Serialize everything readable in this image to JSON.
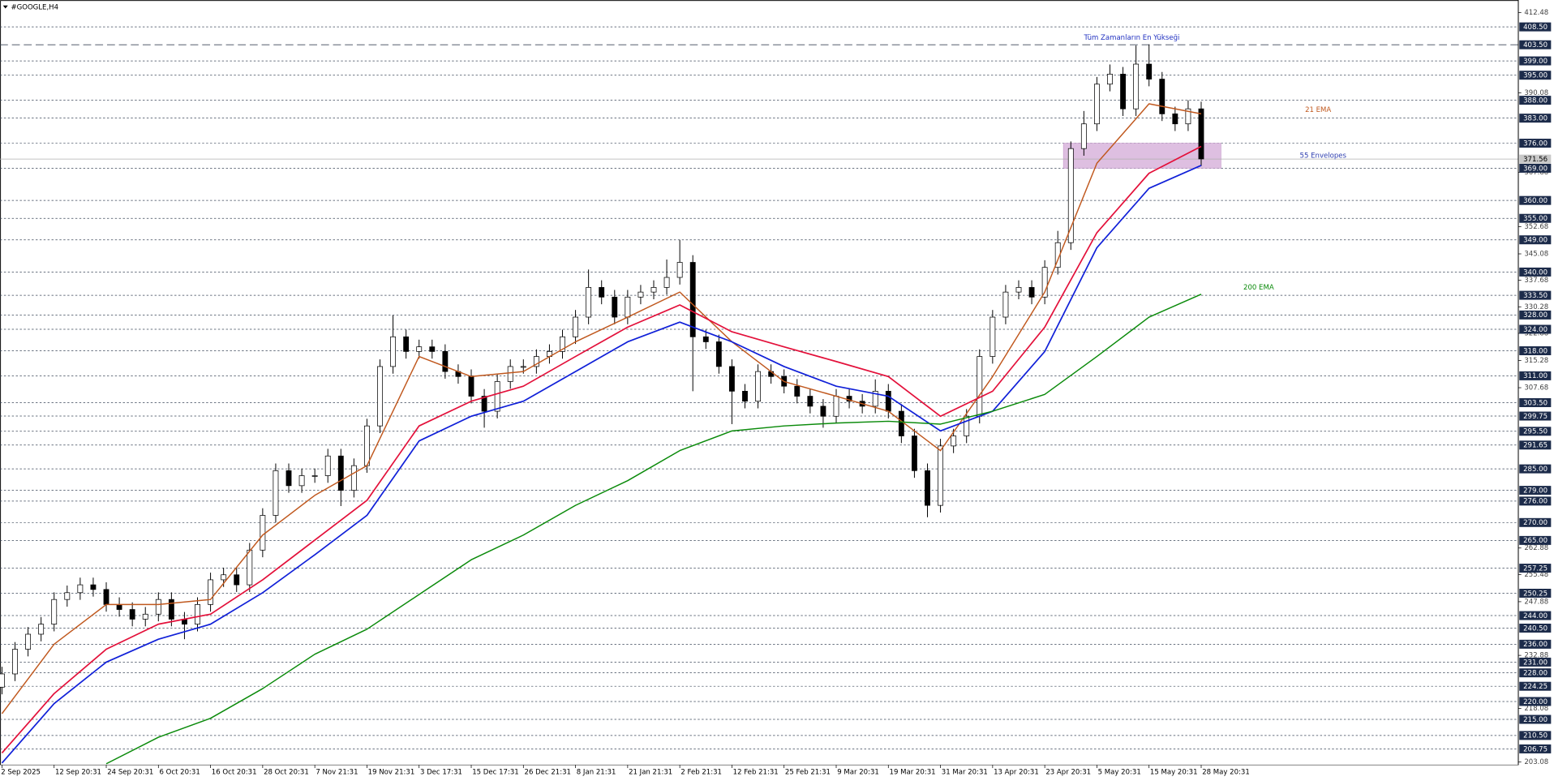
{
  "chart_data": {
    "type": "candlestick",
    "title": "#GOOGLE,H4",
    "times": [
      "2 Sep 2025",
      "12 Sep 20:31",
      "24 Sep 20:31",
      "6 Oct 20:31",
      "16 Oct 20:31",
      "28 Oct 20:31",
      "7 Nov 21:31",
      "19 Nov 21:31",
      "3 Dec 17:31",
      "15 Dec 17:31",
      "26 Dec 21:31",
      "8 Jan 21:31",
      "21 Jan 21:31",
      "2 Feb 21:31",
      "12 Feb 21:31",
      "25 Feb 21:31",
      "9 Mar 20:31",
      "19 Mar 20:31",
      "31 Mar 20:31",
      "13 Apr 20:31",
      "23 Apr 20:31",
      "5 May 20:31",
      "15 May 20:31",
      "28 May 20:31"
    ],
    "open": [
      224,
      227.7,
      234.6,
      238.8,
      241.6,
      248.5,
      250.4,
      252.6,
      251.3,
      247.1,
      245.7,
      243,
      244.4,
      248.5,
      243,
      241.6,
      247.1,
      254,
      255.4,
      252.6,
      262.3,
      272,
      284.5,
      280.3,
      283.1,
      283.1,
      288.6,
      279,
      285.9,
      297,
      313.6,
      321.9,
      317.8,
      319.1,
      317.8,
      312.2,
      310.8,
      305.3,
      301.1,
      309.4,
      313.6,
      313.6,
      316.4,
      317.8,
      321.9,
      327.4,
      335.7,
      333,
      327.4,
      333,
      334.4,
      335.7,
      338.5,
      342.7,
      321.9,
      320.5,
      313.6,
      306.7,
      303.9,
      312.2,
      310.8,
      308.1,
      305.3,
      302.5,
      299.7,
      305.3,
      303.9,
      302.5,
      306.7,
      301.1,
      294.2,
      284.5,
      274.8,
      291.4,
      294.2,
      299.7,
      316.4,
      327.4,
      334.4,
      335.7,
      333,
      341.3,
      348.2,
      374.5,
      381.4,
      392.5,
      395.3,
      385.6,
      398.1,
      393.9,
      384.2,
      381.4,
      385.6
    ],
    "high": [
      229.7,
      236.6,
      240.8,
      243.6,
      250.5,
      252.4,
      254.6,
      254.6,
      253.3,
      249.1,
      247.7,
      246.4,
      250.5,
      250.5,
      245,
      249.1,
      256,
      257.4,
      257.4,
      264.3,
      274,
      286.5,
      286.5,
      285.1,
      285.1,
      290.6,
      290.6,
      287.9,
      299,
      315.6,
      327.9,
      323.9,
      321.1,
      321.1,
      319.8,
      314.2,
      312.8,
      307.3,
      311.4,
      315.6,
      315.6,
      318.4,
      319.8,
      323.9,
      329.4,
      340.7,
      337.7,
      335,
      335,
      336.4,
      337.7,
      343.5,
      349,
      344.7,
      323.9,
      322.5,
      315.6,
      308.7,
      314.2,
      314.2,
      312.8,
      310.1,
      307.3,
      304.5,
      307.3,
      307.3,
      305.9,
      310,
      308.7,
      303.1,
      296.2,
      286.5,
      293.4,
      296.2,
      301.7,
      318.4,
      329.4,
      336.4,
      337.7,
      337.7,
      343.3,
      351.5,
      376.5,
      385,
      394.5,
      398,
      397.3,
      403.3,
      403.6,
      395.9,
      386.2,
      388,
      387.6
    ],
    "low": [
      222,
      225.7,
      232.6,
      236.8,
      239.6,
      246.5,
      248.4,
      249.3,
      245.1,
      243.7,
      241,
      241,
      242.4,
      241,
      237.4,
      239.6,
      245.1,
      252,
      250.6,
      250.6,
      260.3,
      270,
      278.3,
      278.3,
      281.1,
      281.1,
      274.6,
      277,
      283.9,
      295,
      311.6,
      315.8,
      315.8,
      315.8,
      310.2,
      308.8,
      303.3,
      296.5,
      299.1,
      307.4,
      311.6,
      311.6,
      314.4,
      315.8,
      319.9,
      325.4,
      331,
      325.4,
      325.4,
      331,
      332.4,
      333.7,
      336.5,
      306.7,
      318.5,
      311.6,
      297.5,
      301.9,
      301.9,
      308.8,
      306.1,
      303.3,
      300.5,
      296.5,
      297.7,
      301.9,
      300.5,
      300.5,
      299.1,
      292.2,
      282.5,
      271.5,
      272.8,
      289.4,
      292.2,
      297.7,
      314.4,
      325.4,
      332.4,
      331,
      331,
      339.3,
      346.2,
      372.5,
      379.4,
      390.5,
      383.6,
      383.6,
      391.9,
      382.2,
      379.4,
      379.4,
      369.6
    ],
    "close": [
      227.7,
      234.6,
      238.8,
      241.6,
      248.5,
      250.4,
      252.6,
      251.3,
      247.1,
      245.7,
      243,
      244.4,
      248.5,
      243,
      241.6,
      247.1,
      254,
      255.4,
      252.6,
      262.3,
      272,
      284.5,
      280.3,
      283.1,
      283.1,
      288.6,
      279,
      285.9,
      297,
      313.6,
      321.9,
      317.8,
      319.1,
      317.8,
      312.2,
      310.8,
      305.3,
      301.1,
      309.4,
      313.6,
      313.6,
      316.4,
      317.8,
      321.9,
      327.4,
      335.7,
      333,
      327.4,
      333,
      334.4,
      335.7,
      338.5,
      342.7,
      321.9,
      320.5,
      313.6,
      306.7,
      303.9,
      312.2,
      310.8,
      308.1,
      305.3,
      302.5,
      299.7,
      305.3,
      303.9,
      302.5,
      306.7,
      301.1,
      294.2,
      284.5,
      274.8,
      291.4,
      294.2,
      299.7,
      316.4,
      327.4,
      334.4,
      335.7,
      333,
      341.3,
      348.2,
      374.5,
      381.4,
      392.5,
      395.3,
      385.6,
      398.1,
      393.9,
      384.2,
      381.4,
      385.6,
      371.6
    ],
    "candle_color": "#000000",
    "series": [
      {
        "name": "21 EMA",
        "color": "#c0581e",
        "values": [
          216.6,
          236,
          247.1,
          247.1,
          248.5,
          266.5,
          277.6,
          285.9,
          316.4,
          310.8,
          312.2,
          320.5,
          327.4,
          334.4,
          320.5,
          309.4,
          305.3,
          301.1,
          290.1,
          310.8,
          334.4,
          370.4,
          387,
          384.2
        ]
      },
      {
        "name": "55 Envelopes",
        "color": "#3040b0",
        "upper": {
          "color": "#e3103a",
          "values": [
            205.6,
            222.2,
            234.6,
            241.6,
            244.4,
            254,
            265.1,
            276.2,
            297,
            303.9,
            308.1,
            316.4,
            324.6,
            330.8,
            323.3,
            319.1,
            315,
            310.8,
            299.7,
            306.7,
            324.6,
            351,
            367.6,
            375.1
          ]
        },
        "lower": {
          "color": "#1020d8",
          "values": [
            202.8,
            219.4,
            231,
            237.4,
            241.6,
            250.4,
            261,
            272,
            292.8,
            299.7,
            303.9,
            312.2,
            320.5,
            326,
            320.5,
            313.6,
            308.1,
            305.3,
            295.6,
            301.1,
            317.8,
            346.8,
            363.4,
            369.8
          ]
        }
      },
      {
        "name": "200 EMA",
        "color": "#0a8a0a",
        "values": [
          null,
          null,
          202.6,
          210,
          215.3,
          223.6,
          233.2,
          240.2,
          249.9,
          259.6,
          266.5,
          274.8,
          281.7,
          290.1,
          295.6,
          297,
          297.8,
          298.3,
          297.5,
          301.1,
          305.8,
          316.4,
          327.4,
          333.8
        ]
      }
    ],
    "zone": {
      "low": 369,
      "high": 376,
      "color": "#d8b4dc"
    },
    "ylim": [
      202.5,
      416
    ],
    "yticks": [
      412.48,
      390.08,
      367.88,
      352.68,
      345.08,
      337.68,
      330.28,
      322.88,
      315.28,
      307.68,
      262.88,
      255.48,
      247.88,
      232.88,
      218.08,
      203.08
    ],
    "levels": [
      {
        "value": 408.5,
        "label": "408.50"
      },
      {
        "value": 399,
        "label": "399.00"
      },
      {
        "value": 395,
        "label": "395.00"
      },
      {
        "value": 388,
        "label": "388.00"
      },
      {
        "value": 383,
        "label": "383.00"
      },
      {
        "value": 376,
        "label": "376.00"
      },
      {
        "value": 369,
        "label": "369.00"
      },
      {
        "value": 360,
        "label": "360.00"
      },
      {
        "value": 355,
        "label": "355.00"
      },
      {
        "value": 349,
        "label": "349.00"
      },
      {
        "value": 340,
        "label": "340.00"
      },
      {
        "value": 333.5,
        "label": "333.50"
      },
      {
        "value": 328,
        "label": "328.00"
      },
      {
        "value": 324,
        "label": "324.00"
      },
      {
        "value": 318,
        "label": "318.00"
      },
      {
        "value": 311,
        "label": "311.00"
      },
      {
        "value": 303.5,
        "label": "303.50"
      },
      {
        "value": 299.75,
        "label": "299.75"
      },
      {
        "value": 295.5,
        "label": "295.50"
      },
      {
        "value": 291.65,
        "label": "291.65"
      },
      {
        "value": 285,
        "label": "285.00"
      },
      {
        "value": 279,
        "label": "279.00"
      },
      {
        "value": 276,
        "label": "276.00"
      },
      {
        "value": 270,
        "label": "270.00"
      },
      {
        "value": 265,
        "label": "265.00"
      },
      {
        "value": 257.25,
        "label": "257.25"
      },
      {
        "value": 250.25,
        "label": "250.25"
      },
      {
        "value": 244,
        "label": "244.00"
      },
      {
        "value": 240.5,
        "label": "240.50"
      },
      {
        "value": 236,
        "label": "236.00"
      },
      {
        "value": 231,
        "label": "231.00"
      },
      {
        "value": 228,
        "label": "228.00"
      },
      {
        "value": 224.25,
        "label": "224.25"
      },
      {
        "value": 220,
        "label": "220.00"
      },
      {
        "value": 215,
        "label": "215.00"
      },
      {
        "value": 210.5,
        "label": "210.50"
      },
      {
        "value": 206.75,
        "label": "206.75"
      }
    ],
    "ath": {
      "value": 403.5,
      "label": "403.50",
      "text": "Tüm Zamanların En Yükseği"
    },
    "last": {
      "value": 371.56,
      "label": "371.56"
    },
    "level_color": "#1c2b4a"
  }
}
